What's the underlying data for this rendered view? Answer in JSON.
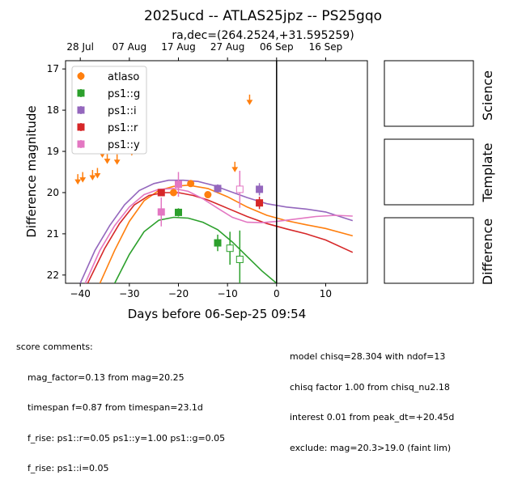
{
  "chart_data": {
    "type": "scatter",
    "title": "2025ucd -- ATLAS25jpz -- PS25gqo",
    "subtitle": "ra,dec=(264.2524,+31.595259)",
    "xlabel": "Days before 06-Sep-25 09:54",
    "ylabel": "Difference magnitude",
    "xlim": [
      -43,
      18.5
    ],
    "ylim": [
      22.2,
      16.8
    ],
    "y_inverted": true,
    "x_ticks": [
      -40,
      -30,
      -20,
      -10,
      0,
      10
    ],
    "x_tick_labels": [
      "−40",
      "−30",
      "−20",
      "−10",
      "0",
      "10"
    ],
    "y_ticks": [
      17,
      18,
      19,
      20,
      21,
      22
    ],
    "y_tick_labels": [
      "17",
      "18",
      "19",
      "20",
      "21",
      "22"
    ],
    "top_ticks": [
      -40,
      -30,
      -20,
      -10,
      0,
      10
    ],
    "top_tick_labels": [
      "28 Jul",
      "07 Aug",
      "17 Aug",
      "27 Aug",
      "06 Sep",
      "16 Sep"
    ],
    "vline_x": 0,
    "legend_position": "top-left",
    "series": [
      {
        "name": "atlaso",
        "color": "#ff7f0e",
        "marker": "circle",
        "points": [
          {
            "x": -21,
            "y": 20.0,
            "err": 0.05
          },
          {
            "x": -17.5,
            "y": 19.78,
            "err": 0.05
          },
          {
            "x": -14,
            "y": 20.05,
            "err": 0.05
          }
        ],
        "upper_limits": [
          {
            "x": -40.5,
            "y": 19.65
          },
          {
            "x": -39.5,
            "y": 19.6
          },
          {
            "x": -37.5,
            "y": 19.55
          },
          {
            "x": -36.5,
            "y": 19.5
          },
          {
            "x": -35.5,
            "y": 19.0
          },
          {
            "x": -34.5,
            "y": 19.15
          },
          {
            "x": -32.5,
            "y": 19.17
          },
          {
            "x": -29.5,
            "y": 18.95
          },
          {
            "x": -8.5,
            "y": 19.35
          },
          {
            "x": -5.5,
            "y": 17.72
          }
        ]
      },
      {
        "name": "ps1::g",
        "color": "#2ca02c",
        "marker": "square",
        "points": [
          {
            "x": -20,
            "y": 20.48,
            "err": 0.1
          },
          {
            "x": -12,
            "y": 21.22,
            "err": 0.2
          }
        ],
        "open_points": [
          {
            "x": -9.5,
            "y": 21.35,
            "err": 0.4
          },
          {
            "x": -7.5,
            "y": 21.62,
            "err": 0.7
          }
        ]
      },
      {
        "name": "ps1::i",
        "color": "#9467bd",
        "marker": "square",
        "points": [
          {
            "x": -12,
            "y": 19.9,
            "err": 0.1
          },
          {
            "x": -3.5,
            "y": 19.92,
            "err": 0.15
          }
        ]
      },
      {
        "name": "ps1::r",
        "color": "#d62728",
        "marker": "square",
        "points": [
          {
            "x": -23.5,
            "y": 20.0,
            "err": 0.08
          },
          {
            "x": -3.5,
            "y": 20.25,
            "err": 0.15
          }
        ]
      },
      {
        "name": "ps1::y",
        "color": "#e377c2",
        "marker": "square",
        "points": [
          {
            "x": -23.5,
            "y": 20.47,
            "err": 0.35
          },
          {
            "x": -20,
            "y": 19.8,
            "err": 0.3
          }
        ],
        "open_points": [
          {
            "x": -7.5,
            "y": 19.92,
            "err": 0.45
          }
        ]
      }
    ],
    "model_curves": [
      {
        "color": "#ff7f0e",
        "points": [
          [
            -36,
            22.2
          ],
          [
            -33,
            21.4
          ],
          [
            -30,
            20.7
          ],
          [
            -27,
            20.2
          ],
          [
            -24,
            19.95
          ],
          [
            -21,
            19.85
          ],
          [
            -18,
            19.82
          ],
          [
            -14,
            19.9
          ],
          [
            -10,
            20.1
          ],
          [
            -6,
            20.35
          ],
          [
            -2,
            20.55
          ],
          [
            2,
            20.68
          ],
          [
            6,
            20.78
          ],
          [
            10,
            20.87
          ],
          [
            15.5,
            21.05
          ]
        ]
      },
      {
        "color": "#2ca02c",
        "points": [
          [
            -33,
            22.2
          ],
          [
            -30,
            21.5
          ],
          [
            -27,
            20.95
          ],
          [
            -24,
            20.67
          ],
          [
            -21,
            20.6
          ],
          [
            -18,
            20.62
          ],
          [
            -15,
            20.72
          ],
          [
            -12,
            20.9
          ],
          [
            -9,
            21.2
          ],
          [
            -6,
            21.55
          ],
          [
            -3,
            21.9
          ],
          [
            0,
            22.2
          ]
        ]
      },
      {
        "color": "#9467bd",
        "points": [
          [
            -40,
            22.2
          ],
          [
            -37,
            21.4
          ],
          [
            -34,
            20.8
          ],
          [
            -31,
            20.3
          ],
          [
            -28,
            19.95
          ],
          [
            -25,
            19.78
          ],
          [
            -22,
            19.7
          ],
          [
            -19,
            19.7
          ],
          [
            -16,
            19.73
          ],
          [
            -13,
            19.82
          ],
          [
            -10,
            19.95
          ],
          [
            -6,
            20.12
          ],
          [
            -2,
            20.27
          ],
          [
            2,
            20.35
          ],
          [
            6,
            20.4
          ],
          [
            10,
            20.47
          ],
          [
            15.5,
            20.68
          ]
        ]
      },
      {
        "color": "#d62728",
        "points": [
          [
            -38.5,
            22.2
          ],
          [
            -35,
            21.35
          ],
          [
            -32,
            20.75
          ],
          [
            -29,
            20.3
          ],
          [
            -26,
            20.07
          ],
          [
            -23,
            20.0
          ],
          [
            -20,
            20.0
          ],
          [
            -17,
            20.07
          ],
          [
            -14,
            20.18
          ],
          [
            -10,
            20.38
          ],
          [
            -6,
            20.58
          ],
          [
            -2,
            20.75
          ],
          [
            2,
            20.88
          ],
          [
            6,
            21.0
          ],
          [
            10,
            21.15
          ],
          [
            15.5,
            21.45
          ]
        ]
      },
      {
        "color": "#e377c2",
        "points": [
          [
            -39,
            22.2
          ],
          [
            -36,
            21.4
          ],
          [
            -33,
            20.8
          ],
          [
            -30,
            20.35
          ],
          [
            -27,
            20.05
          ],
          [
            -24,
            19.92
          ],
          [
            -21,
            19.9
          ],
          [
            -18,
            19.97
          ],
          [
            -15,
            20.15
          ],
          [
            -12,
            20.38
          ],
          [
            -9,
            20.6
          ],
          [
            -6,
            20.72
          ],
          [
            -3,
            20.73
          ],
          [
            0,
            20.7
          ],
          [
            4,
            20.64
          ],
          [
            8,
            20.58
          ],
          [
            12,
            20.55
          ],
          [
            15.5,
            20.57
          ]
        ]
      }
    ]
  },
  "side_panels": [
    "Science",
    "Template",
    "Difference"
  ],
  "comments": {
    "heading": "score comments:",
    "left_lines": [
      "mag_factor=0.13 from mag=20.25",
      "timespan f=0.87 from timespan=23.1d",
      "f_rise: ps1::r=0.05 ps1::y=1.00 ps1::g=0.05",
      "f_rise: ps1::i=0.05"
    ],
    "right_lines": [
      "model chisq=28.304 with ndof=13",
      "chisq factor 1.00 from chisq_nu2.18",
      "interest 0.01 from peak_dt=+20.45d",
      "exclude: mag=20.3>19.0 (faint lim)"
    ]
  }
}
